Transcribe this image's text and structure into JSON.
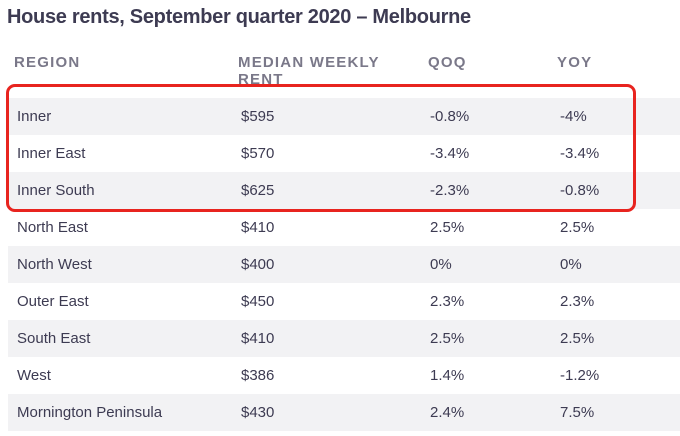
{
  "title": "House rents, September quarter 2020 – Melbourne",
  "headers": [
    "REGION",
    "MEDIAN WEEKLY RENT",
    "QOQ",
    "YOY"
  ],
  "rows": [
    {
      "region": "Inner",
      "rent": "$595",
      "qoq": "-0.8%",
      "yoy": "-4%"
    },
    {
      "region": "Inner East",
      "rent": "$570",
      "qoq": "-3.4%",
      "yoy": "-3.4%"
    },
    {
      "region": "Inner South",
      "rent": "$625",
      "qoq": "-2.3%",
      "yoy": "-0.8%"
    },
    {
      "region": "North East",
      "rent": "$410",
      "qoq": "2.5%",
      "yoy": "2.5%"
    },
    {
      "region": "North West",
      "rent": "$400",
      "qoq": "0%",
      "yoy": "0%"
    },
    {
      "region": "Outer East",
      "rent": "$450",
      "qoq": "2.3%",
      "yoy": "2.3%"
    },
    {
      "region": "South East",
      "rent": "$410",
      "qoq": "2.5%",
      "yoy": "2.5%"
    },
    {
      "region": "West",
      "rent": "$386",
      "qoq": "1.4%",
      "yoy": "-1.2%"
    },
    {
      "region": "Mornington Peninsula",
      "rent": "$430",
      "qoq": "2.4%",
      "yoy": "7.5%"
    }
  ],
  "highlight_color": "#e8241f",
  "shaded_row_color": "#f2f2f4"
}
